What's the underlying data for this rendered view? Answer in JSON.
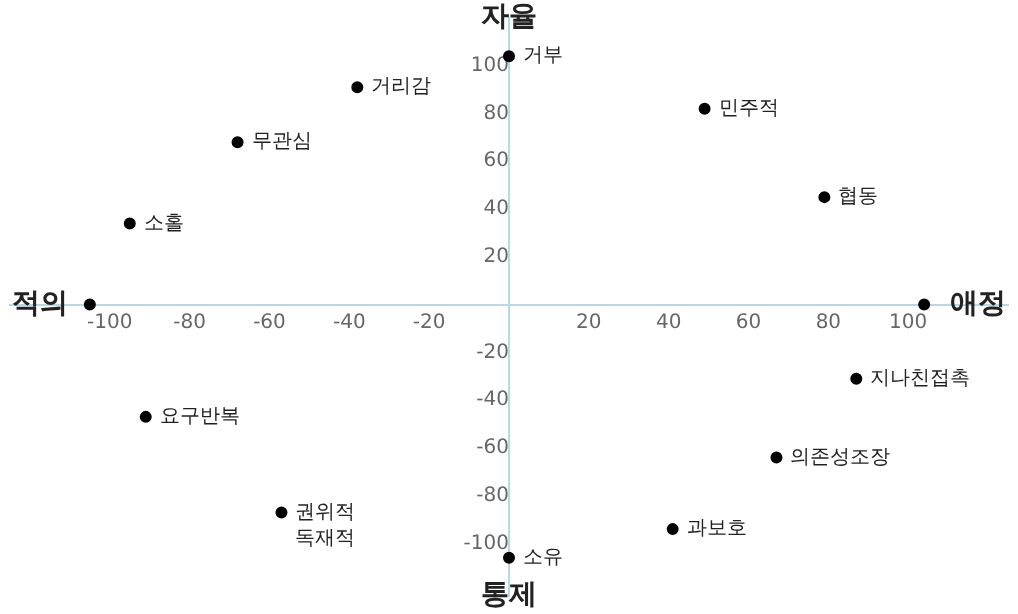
{
  "chart_data": {
    "type": "scatter",
    "x": [
      0,
      -38,
      -68,
      -95,
      -105,
      49,
      79,
      104,
      -91,
      -57,
      0,
      87,
      67,
      41
    ],
    "series": [
      {
        "color": "#000000",
        "values": [
          104,
          91,
          68,
          34,
          0,
          82,
          45,
          0,
          -47,
          -87,
          -106,
          -31,
          -64,
          -94
        ],
        "value_labels": [
          "거부",
          "거리감",
          "무관심",
          "소홀",
          null,
          "민주적",
          "협동",
          null,
          "요구반복",
          "권위적\n독재적",
          "소유",
          "지나친접촉",
          "의존성조장",
          "과보호"
        ]
      }
    ],
    "xlim": [
      -125,
      125
    ],
    "ylim": [
      -122,
      120
    ],
    "xticks": [
      -100,
      -80,
      -60,
      -40,
      -20,
      20,
      40,
      60,
      80,
      100
    ],
    "yticks": [
      -100,
      -80,
      -60,
      -40,
      -20,
      20,
      40,
      60,
      80,
      100
    ],
    "annotations": [
      "자율",
      "통제",
      "적의",
      "애정"
    ],
    "grid": false,
    "legend": false,
    "marker": "circle"
  }
}
